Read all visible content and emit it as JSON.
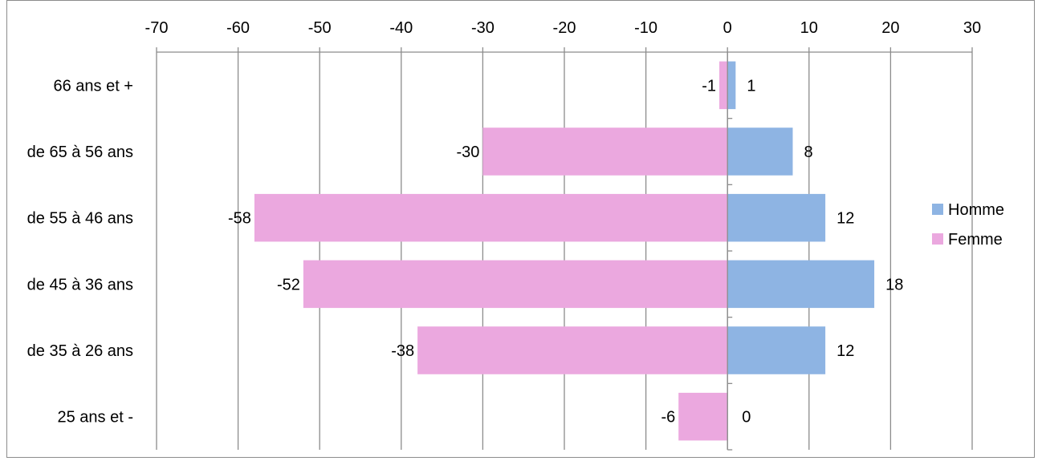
{
  "chart_data": {
    "type": "bar",
    "orientation": "horizontal",
    "stacked": true,
    "categories": [
      "66 ans et +",
      "de 65 à 56 ans",
      "de 55 à 46 ans",
      "de 45 à 36 ans",
      "de 35 à 26 ans",
      "25 ans et -"
    ],
    "series": [
      {
        "name": "Homme",
        "color": "#8EB4E3",
        "values": [
          1,
          8,
          12,
          18,
          12,
          0
        ]
      },
      {
        "name": "Femme",
        "color": "#EBA8DF",
        "values": [
          -1,
          -30,
          -58,
          -52,
          -38,
          -6
        ]
      }
    ],
    "xlim": [
      -70,
      30
    ],
    "xticks": [
      -70,
      -60,
      -50,
      -40,
      -30,
      -20,
      -10,
      0,
      10,
      20,
      30
    ],
    "xaxis_position": "top",
    "grid": "vertical",
    "legend": "right",
    "title": "",
    "xlabel": "",
    "ylabel": ""
  }
}
